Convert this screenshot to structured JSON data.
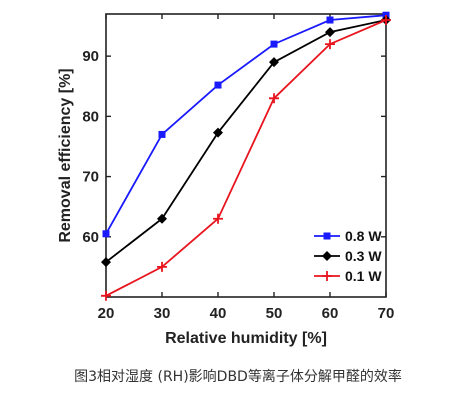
{
  "caption": "图3相对湿度 (RH)影响DBD等离子体分解甲醛的效率",
  "chart_data": {
    "type": "line",
    "xlabel": "Relative humidity [%]",
    "ylabel": "Removal efficiency [%]",
    "x": [
      20,
      30,
      40,
      50,
      60,
      70
    ],
    "xlim": [
      20,
      70
    ],
    "ylim": [
      50,
      97
    ],
    "xticks": [
      20,
      30,
      40,
      50,
      60,
      70
    ],
    "yticks": [
      60,
      70,
      80,
      90
    ],
    "legend_position": "bottom-right",
    "grid": false,
    "series": [
      {
        "name": "0.8 W",
        "color": "#1a1aff",
        "marker": "square",
        "values": [
          60.5,
          77,
          85.2,
          92,
          96,
          96.8
        ]
      },
      {
        "name": "0.3 W",
        "color": "#000000",
        "marker": "diamond",
        "values": [
          55.8,
          63,
          77.3,
          89,
          94,
          96
        ]
      },
      {
        "name": "0.1 W",
        "color": "#e8141e",
        "marker": "plus",
        "values": [
          50.2,
          55,
          63,
          83,
          92,
          96
        ]
      }
    ]
  }
}
